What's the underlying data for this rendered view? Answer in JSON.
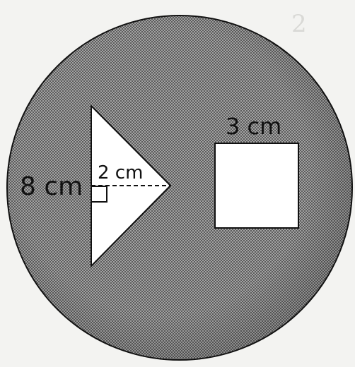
{
  "page_mark": "2",
  "labels": {
    "triangle_base": "8 cm",
    "triangle_height": "2 cm",
    "square_side": "3 cm"
  },
  "colors": {
    "shading": "#9a9a9a",
    "shading_dots": "#2a2a2a",
    "shape_fill": "#ffffff",
    "stroke": "#111111",
    "background": "#f3f3f1"
  }
}
